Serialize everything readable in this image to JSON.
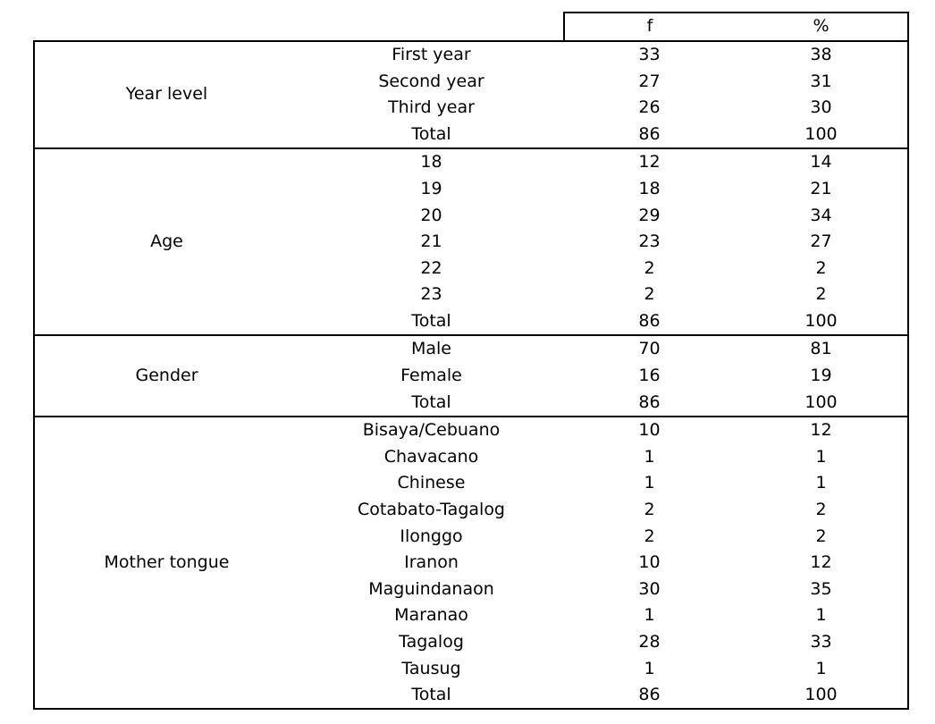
{
  "table": {
    "columns": {
      "f_label": "f",
      "pct_label": "%"
    },
    "sections": [
      {
        "category": "Year level",
        "rows": [
          [
            "First year",
            "33",
            "38"
          ],
          [
            "Second year",
            "27",
            "31"
          ],
          [
            "Third year",
            "26",
            "30"
          ],
          [
            "Total",
            "86",
            "100"
          ]
        ]
      },
      {
        "category": "Age",
        "rows": [
          [
            "18",
            "12",
            "14"
          ],
          [
            "19",
            "18",
            "21"
          ],
          [
            "20",
            "29",
            "34"
          ],
          [
            "21",
            "23",
            "27"
          ],
          [
            "22",
            "2",
            "2"
          ],
          [
            "23",
            "2",
            "2"
          ],
          [
            "Total",
            "86",
            "100"
          ]
        ]
      },
      {
        "category": "Gender",
        "rows": [
          [
            "Male",
            "70",
            "81"
          ],
          [
            "Female",
            "16",
            "19"
          ],
          [
            "Total",
            "86",
            "100"
          ]
        ]
      },
      {
        "category": "Mother tongue",
        "rows": [
          [
            "Bisaya/Cebuano",
            "10",
            "12"
          ],
          [
            "Chavacano",
            "1",
            "1"
          ],
          [
            "Chinese",
            "1",
            "1"
          ],
          [
            "Cotabato-Tagalog",
            "2",
            "2"
          ],
          [
            "Ilonggo",
            "2",
            "2"
          ],
          [
            "Iranon",
            "10",
            "12"
          ],
          [
            "Maguindanaon",
            "30",
            "35"
          ],
          [
            "Maranao",
            "1",
            "1"
          ],
          [
            "Tagalog",
            "28",
            "33"
          ],
          [
            "Tausug",
            "1",
            "1"
          ],
          [
            "Total",
            "86",
            "100"
          ]
        ]
      }
    ],
    "colors": {
      "border": "#000000",
      "text": "#000000",
      "background": "#ffffff"
    }
  }
}
